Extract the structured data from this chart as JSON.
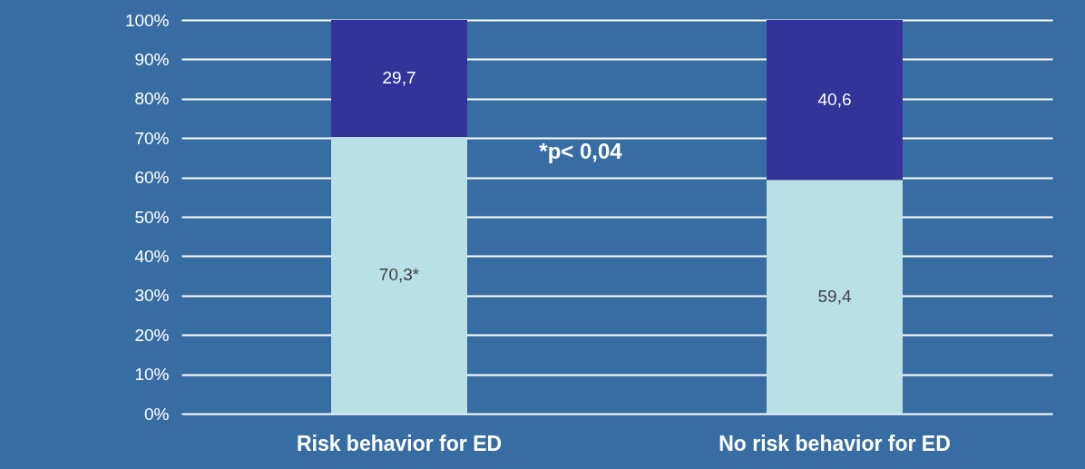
{
  "chart_data": {
    "type": "bar",
    "stacked": true,
    "categories": [
      "Risk behavior for ED",
      "No risk behavior for ED"
    ],
    "series": [
      {
        "color": "#b9e0e4",
        "values": [
          70.3,
          59.4
        ],
        "value_labels": [
          "70,3*",
          "59,4"
        ]
      },
      {
        "color": "#33339a",
        "values": [
          29.7,
          40.6
        ],
        "value_labels": [
          "29,7",
          "40,6"
        ]
      }
    ],
    "ylim": [
      0,
      100
    ],
    "yticks": [
      {
        "value": 0,
        "label": "0%"
      },
      {
        "value": 10,
        "label": "10%"
      },
      {
        "value": 20,
        "label": "20%"
      },
      {
        "value": 30,
        "label": "30%"
      },
      {
        "value": 40,
        "label": "40%"
      },
      {
        "value": 50,
        "label": "50%"
      },
      {
        "value": 60,
        "label": "60%"
      },
      {
        "value": 70,
        "label": "70%"
      },
      {
        "value": 80,
        "label": "80%"
      },
      {
        "value": 90,
        "label": "90%"
      },
      {
        "value": 100,
        "label": "100%"
      }
    ],
    "grid": "y",
    "annotations": [
      "*p< 0,04"
    ]
  }
}
